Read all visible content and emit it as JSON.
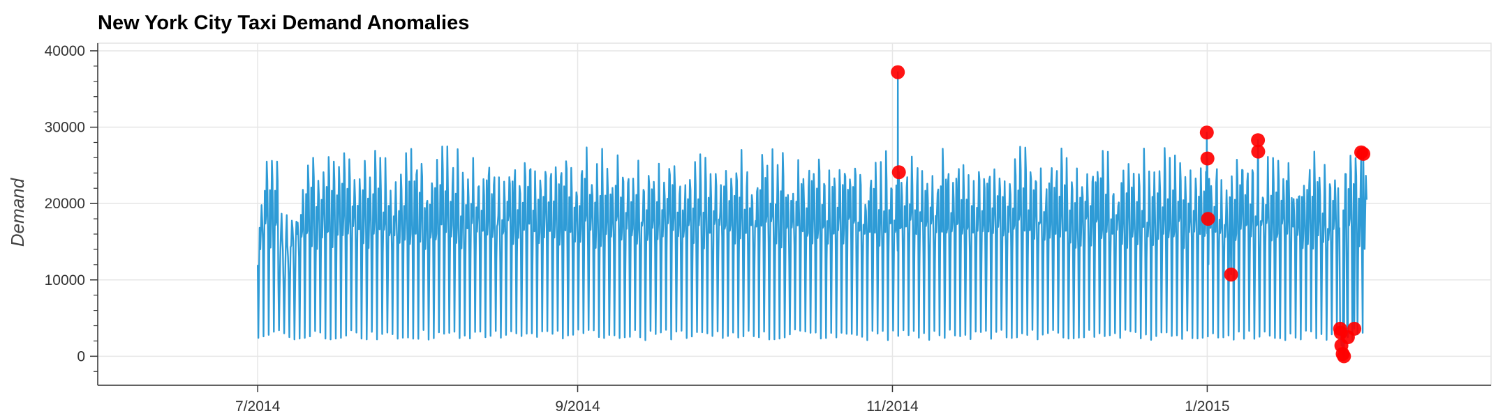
{
  "chart_data": {
    "type": "line",
    "title": "New York City Taxi Demand Anomalies",
    "xlabel": "",
    "ylabel": "Demand",
    "xlim": [
      "2014-05-31",
      "2015-02-25"
    ],
    "ylim": [
      -3800,
      41000
    ],
    "grid": true,
    "x_ticks": [
      {
        "date": "2014-07-01",
        "label": "7/2014"
      },
      {
        "date": "2014-09-01",
        "label": "9/2014"
      },
      {
        "date": "2014-11-01",
        "label": "11/2014"
      },
      {
        "date": "2015-01-01",
        "label": "1/2015"
      }
    ],
    "y_ticks": [
      0,
      10000,
      20000,
      30000,
      40000
    ],
    "series": [
      {
        "style": "line",
        "color": "#2e9bd6",
        "description_start": "2014-07-01",
        "description_end": "2015-01-31",
        "sampling": "30-minute, estimated envelope of daily cycle",
        "daily": [
          {
            "date": "2014-07-01",
            "min": 2400,
            "max": 19800
          },
          {
            "date": "2014-07-02",
            "min": 2600,
            "max": 25500
          },
          {
            "date": "2014-07-03",
            "min": 2800,
            "max": 25600
          },
          {
            "date": "2014-07-04",
            "min": 3200,
            "max": 25500
          },
          {
            "date": "2014-07-05",
            "min": 3400,
            "max": 18000
          },
          {
            "date": "2014-07-06",
            "min": 3000,
            "max": 17000
          },
          {
            "date": "2014-07-07",
            "min": 2500,
            "max": 16800
          },
          {
            "date": "2014-07-08",
            "min": 2200,
            "max": 17500
          },
          {
            "date": "2014-07-09",
            "min": 2300,
            "max": 21800
          },
          {
            "date": "2014-07-10",
            "min": 2400,
            "max": 25000
          },
          {
            "date": "2014-07-11",
            "min": 2600,
            "max": 26000
          },
          {
            "date": "2014-07-12",
            "min": 3300,
            "max": 25500
          },
          {
            "date": "2014-07-13",
            "min": 3100,
            "max": 26600
          },
          {
            "date": "2014-07-14",
            "min": 2300,
            "max": 26100
          },
          {
            "date": "2014-07-15",
            "min": 2200,
            "max": 25500
          },
          {
            "date": "2014-07-16",
            "min": 2300,
            "max": 24800
          },
          {
            "date": "2014-07-17",
            "min": 2400,
            "max": 26600
          },
          {
            "date": "2014-07-18",
            "min": 2700,
            "max": 25800
          },
          {
            "date": "2014-07-19",
            "min": 3400,
            "max": 25600
          },
          {
            "date": "2014-07-20",
            "min": 3100,
            "max": 25700
          },
          {
            "date": "2014-07-21",
            "min": 2300,
            "max": 25600
          }
        ],
        "mean": 16000,
        "typical_min": 2800,
        "typical_max": 25000
      },
      {
        "style": "markers",
        "name": "",
        "color": "#ff0000",
        "points": [
          {
            "x": "2014-11-02T01:00",
            "y": 37200
          },
          {
            "x": "2014-11-02T06:00",
            "y": 24100
          },
          {
            "x": "2014-12-31T22:00",
            "y": 29300
          },
          {
            "x": "2015-01-01T01:00",
            "y": 25900
          },
          {
            "x": "2015-01-01T04:00",
            "y": 18000
          },
          {
            "x": "2015-01-05T15:00",
            "y": 10700
          },
          {
            "x": "2015-01-10T20:00",
            "y": 28300
          },
          {
            "x": "2015-01-10T21:00",
            "y": 26800
          },
          {
            "x": "2015-01-26T18:00",
            "y": 3600
          },
          {
            "x": "2015-01-26T21:00",
            "y": 3100
          },
          {
            "x": "2015-01-27T00:00",
            "y": 1400
          },
          {
            "x": "2015-01-27T06:00",
            "y": 300
          },
          {
            "x": "2015-01-27T12:00",
            "y": 0
          },
          {
            "x": "2015-01-28T06:00",
            "y": 2500
          },
          {
            "x": "2015-01-29T12:00",
            "y": 3600
          },
          {
            "x": "2015-01-30T20:00",
            "y": 26700
          },
          {
            "x": "2015-01-31T06:00",
            "y": 26500
          }
        ]
      }
    ]
  }
}
